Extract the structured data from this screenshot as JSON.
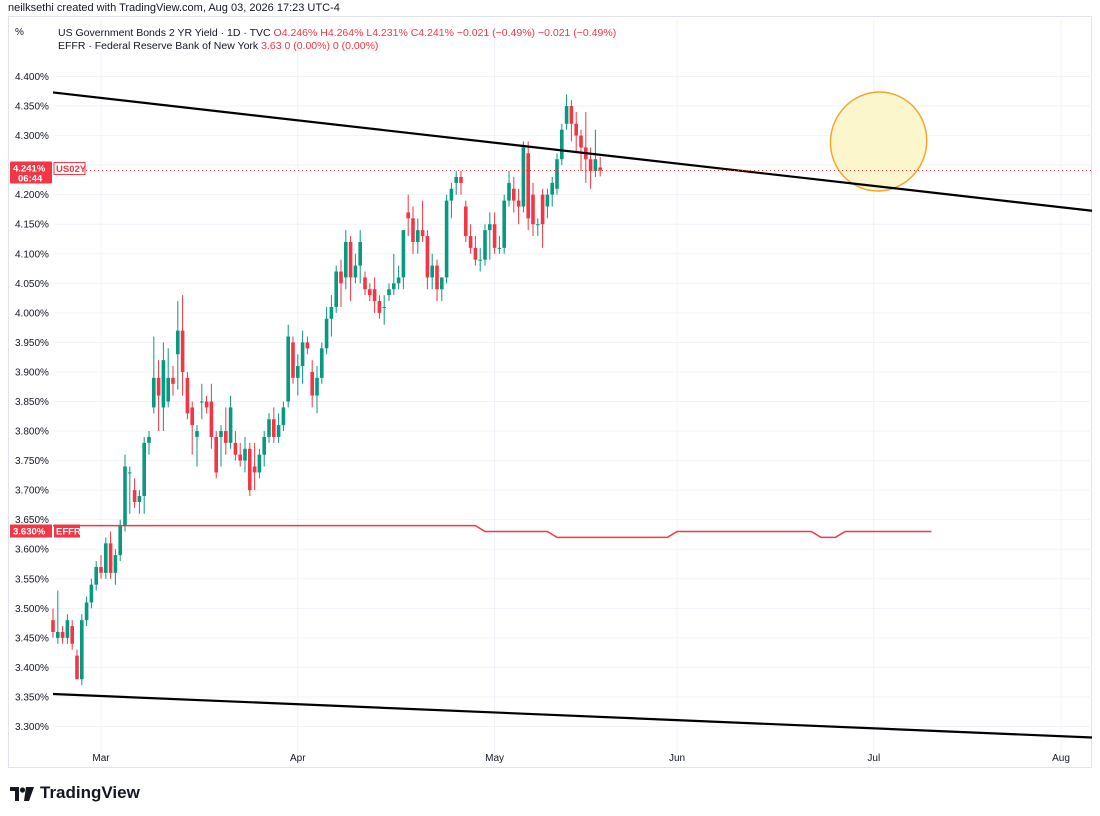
{
  "header": {
    "created_line": "neilksethi created with TradingView.com, Aug 03, 2026 17:23 UTC-4"
  },
  "legend": {
    "percent_toggle": "%",
    "series1_label": "US Government Bonds 2 YR Yield · 1D · TVC",
    "series1_values": "O4.246%  H4.264%  L4.231%  C4.241%  −0.021 (−0.49%)  −0.021 (−0.49%)",
    "series2_label": "EFFR · Federal Reserve Bank of New York",
    "series2_values": "3.63  0 (0.00%)  0 (0.00%)"
  },
  "price_tags": {
    "us02y_value": "4.241%",
    "us02y_name": "US02Y",
    "countdown": "06:44",
    "effr_value": "3.630%",
    "effr_name": "EFFR"
  },
  "brand": {
    "name": "TradingView"
  },
  "colors": {
    "up": "#089981",
    "down": "#f23645",
    "effr": "#f23645",
    "trendline": "#000000",
    "highlight_fill": "#fbf5c4",
    "highlight_stroke": "#f2a72b"
  },
  "chart_data": {
    "type": "candlestick",
    "y_axis": {
      "unit": "%",
      "ylim": [
        3.27,
        4.46
      ],
      "ticks": [
        "4.400%",
        "4.350%",
        "4.300%",
        "4.250%",
        "4.200%",
        "4.150%",
        "4.100%",
        "4.050%",
        "4.000%",
        "3.950%",
        "3.900%",
        "3.850%",
        "3.800%",
        "3.750%",
        "3.700%",
        "3.650%",
        "3.600%",
        "3.550%",
        "3.500%",
        "3.450%",
        "3.400%",
        "3.350%",
        "3.300%"
      ],
      "tick_values": [
        4.4,
        4.35,
        4.3,
        4.25,
        4.2,
        4.15,
        4.1,
        4.05,
        4.0,
        3.95,
        3.9,
        3.85,
        3.8,
        3.75,
        3.7,
        3.65,
        3.6,
        3.55,
        3.5,
        3.45,
        3.4,
        3.35,
        3.3
      ]
    },
    "x_axis": {
      "labels": [
        "Mar",
        "Apr",
        "May",
        "Jun",
        "Jul",
        "Aug"
      ],
      "label_bar_index": [
        10,
        51,
        92,
        130,
        171,
        210
      ]
    },
    "ohlc": [
      [
        3.48,
        3.5,
        3.45,
        3.46
      ],
      [
        3.45,
        3.53,
        3.44,
        3.46
      ],
      [
        3.46,
        3.47,
        3.44,
        3.45
      ],
      [
        3.45,
        3.49,
        3.44,
        3.48
      ],
      [
        3.47,
        3.48,
        3.43,
        3.44
      ],
      [
        3.42,
        3.43,
        3.38,
        3.38
      ],
      [
        3.38,
        3.49,
        3.37,
        3.48
      ],
      [
        3.48,
        3.52,
        3.47,
        3.51
      ],
      [
        3.51,
        3.55,
        3.5,
        3.54
      ],
      [
        3.54,
        3.58,
        3.53,
        3.57
      ],
      [
        3.57,
        3.59,
        3.55,
        3.56
      ],
      [
        3.56,
        3.62,
        3.55,
        3.61
      ],
      [
        3.61,
        3.63,
        3.55,
        3.56
      ],
      [
        3.56,
        3.6,
        3.54,
        3.59
      ],
      [
        3.59,
        3.65,
        3.58,
        3.64
      ],
      [
        3.64,
        3.76,
        3.63,
        3.74
      ],
      [
        3.73,
        3.74,
        3.66,
        3.73
      ],
      [
        3.7,
        3.72,
        3.67,
        3.68
      ],
      [
        3.68,
        3.7,
        3.66,
        3.69
      ],
      [
        3.69,
        3.79,
        3.66,
        3.78
      ],
      [
        3.78,
        3.8,
        3.76,
        3.79
      ],
      [
        3.84,
        3.96,
        3.83,
        3.89
      ],
      [
        3.89,
        3.92,
        3.8,
        3.86
      ],
      [
        3.84,
        3.95,
        3.8,
        3.92
      ],
      [
        3.85,
        3.94,
        3.84,
        3.89
      ],
      [
        3.89,
        3.91,
        3.86,
        3.88
      ],
      [
        3.93,
        4.02,
        3.87,
        3.97
      ],
      [
        3.97,
        4.03,
        3.86,
        3.9
      ],
      [
        3.89,
        3.9,
        3.82,
        3.83
      ],
      [
        3.84,
        3.85,
        3.76,
        3.81
      ],
      [
        3.79,
        3.81,
        3.74,
        3.8
      ],
      [
        3.85,
        3.88,
        3.82,
        3.85
      ],
      [
        3.85,
        3.86,
        3.83,
        3.84
      ],
      [
        3.85,
        3.88,
        3.77,
        3.79
      ],
      [
        3.79,
        3.8,
        3.72,
        3.73
      ],
      [
        3.79,
        3.81,
        3.74,
        3.8
      ],
      [
        3.8,
        3.84,
        3.76,
        3.78
      ],
      [
        3.78,
        3.86,
        3.77,
        3.84
      ],
      [
        3.78,
        3.8,
        3.75,
        3.76
      ],
      [
        3.76,
        3.78,
        3.74,
        3.75
      ],
      [
        3.75,
        3.79,
        3.73,
        3.77
      ],
      [
        3.77,
        3.78,
        3.69,
        3.7
      ],
      [
        3.74,
        3.78,
        3.7,
        3.73
      ],
      [
        3.73,
        3.77,
        3.72,
        3.76
      ],
      [
        3.76,
        3.8,
        3.74,
        3.79
      ],
      [
        3.79,
        3.83,
        3.78,
        3.82
      ],
      [
        3.82,
        3.84,
        3.78,
        3.79
      ],
      [
        3.79,
        3.83,
        3.78,
        3.81
      ],
      [
        3.81,
        3.85,
        3.8,
        3.84
      ],
      [
        3.85,
        3.98,
        3.84,
        3.96
      ],
      [
        3.95,
        3.96,
        3.88,
        3.89
      ],
      [
        3.89,
        3.93,
        3.86,
        3.91
      ],
      [
        3.91,
        3.97,
        3.88,
        3.95
      ],
      [
        3.95,
        3.96,
        3.93,
        3.94
      ],
      [
        3.9,
        3.92,
        3.84,
        3.86
      ],
      [
        3.86,
        3.91,
        3.83,
        3.89
      ],
      [
        3.89,
        3.95,
        3.88,
        3.94
      ],
      [
        3.94,
        4.01,
        3.93,
        3.99
      ],
      [
        3.99,
        4.03,
        3.96,
        4.01
      ],
      [
        4.01,
        4.08,
        4.0,
        4.07
      ],
      [
        4.07,
        4.09,
        4.01,
        4.05
      ],
      [
        4.06,
        4.14,
        4.04,
        4.12
      ],
      [
        4.12,
        4.13,
        4.02,
        4.06
      ],
      [
        4.06,
        4.1,
        4.05,
        4.08
      ],
      [
        4.08,
        4.14,
        4.05,
        4.12
      ],
      [
        4.06,
        4.07,
        4.03,
        4.04
      ],
      [
        4.04,
        4.05,
        4.02,
        4.03
      ],
      [
        4.04,
        4.06,
        4.0,
        4.02
      ],
      [
        4.02,
        4.03,
        3.99,
        4.0
      ],
      [
        4.01,
        4.03,
        3.98,
        4.01
      ],
      [
        4.03,
        4.05,
        4.02,
        4.04
      ],
      [
        4.04,
        4.1,
        4.03,
        4.05
      ],
      [
        4.05,
        4.08,
        4.04,
        4.06
      ],
      [
        4.06,
        4.13,
        4.04,
        4.14
      ],
      [
        4.17,
        4.2,
        4.13,
        4.16
      ],
      [
        4.16,
        4.18,
        4.1,
        4.12
      ],
      [
        4.12,
        4.16,
        4.1,
        4.14
      ],
      [
        4.14,
        4.19,
        4.12,
        4.13
      ],
      [
        4.13,
        4.14,
        4.04,
        4.06
      ],
      [
        4.06,
        4.1,
        4.04,
        4.08
      ],
      [
        4.08,
        4.09,
        4.02,
        4.04
      ],
      [
        4.04,
        4.06,
        4.02,
        4.06
      ],
      [
        4.06,
        4.2,
        4.05,
        4.19
      ],
      [
        4.19,
        4.22,
        4.16,
        4.21
      ],
      [
        4.22,
        4.24,
        4.2,
        4.23
      ],
      [
        4.23,
        4.24,
        4.2,
        4.22
      ],
      [
        4.18,
        4.19,
        4.12,
        4.13
      ],
      [
        4.13,
        4.15,
        4.1,
        4.11
      ],
      [
        4.11,
        4.13,
        4.08,
        4.09
      ],
      [
        4.09,
        4.11,
        4.07,
        4.09
      ],
      [
        4.09,
        4.15,
        4.08,
        4.14
      ],
      [
        4.14,
        4.17,
        4.09,
        4.15
      ],
      [
        4.15,
        4.17,
        4.1,
        4.11
      ],
      [
        4.11,
        4.13,
        4.1,
        4.11
      ],
      [
        4.11,
        4.2,
        4.1,
        4.19
      ],
      [
        4.19,
        4.24,
        4.18,
        4.22
      ],
      [
        4.21,
        4.23,
        4.17,
        4.19
      ],
      [
        4.19,
        4.21,
        4.15,
        4.18
      ],
      [
        4.18,
        4.29,
        4.17,
        4.28
      ],
      [
        4.27,
        4.29,
        4.14,
        4.16
      ],
      [
        4.2,
        4.22,
        4.13,
        4.15
      ],
      [
        4.15,
        4.16,
        4.13,
        4.15
      ],
      [
        4.2,
        4.21,
        4.11,
        4.15
      ],
      [
        4.18,
        4.21,
        4.16,
        4.2
      ],
      [
        4.2,
        4.23,
        4.18,
        4.22
      ],
      [
        4.21,
        4.27,
        4.2,
        4.26
      ],
      [
        4.26,
        4.32,
        4.25,
        4.31
      ],
      [
        4.32,
        4.37,
        4.31,
        4.35
      ],
      [
        4.35,
        4.36,
        4.29,
        4.32
      ],
      [
        4.32,
        4.34,
        4.27,
        4.3
      ],
      [
        4.3,
        4.31,
        4.24,
        4.28
      ],
      [
        4.28,
        4.34,
        4.22,
        4.26
      ],
      [
        4.26,
        4.28,
        4.21,
        4.24
      ],
      [
        4.24,
        4.31,
        4.23,
        4.26
      ],
      [
        4.246,
        4.264,
        4.231,
        4.241
      ]
    ],
    "effr": {
      "segments": [
        {
          "from_bar": 0,
          "to_bar": 88,
          "value": 3.64
        },
        {
          "from_bar": 90,
          "to_bar": 103,
          "value": 3.63
        },
        {
          "from_bar": 105,
          "to_bar": 128,
          "value": 3.62
        },
        {
          "from_bar": 130,
          "to_bar": 158,
          "value": 3.63
        },
        {
          "from_bar": 160,
          "to_bar": 163,
          "value": 3.62
        },
        {
          "from_bar": 165,
          "to_bar": 183,
          "value": 3.63
        }
      ]
    },
    "trendlines": [
      {
        "name": "upper-trendline",
        "from_bar": 0,
        "from_value": 4.373,
        "to_bar": 200,
        "to_value": 4.188
      },
      {
        "name": "lower-trendline",
        "from_bar": 0,
        "from_value": 3.355,
        "to_bar": 200,
        "to_value": 3.287
      }
    ],
    "highlight_ellipse": {
      "center_bar": 172,
      "center_value": 4.29,
      "half_width_bars": 8,
      "half_height_value": 0.084
    },
    "last_price_line_value": 4.241
  }
}
